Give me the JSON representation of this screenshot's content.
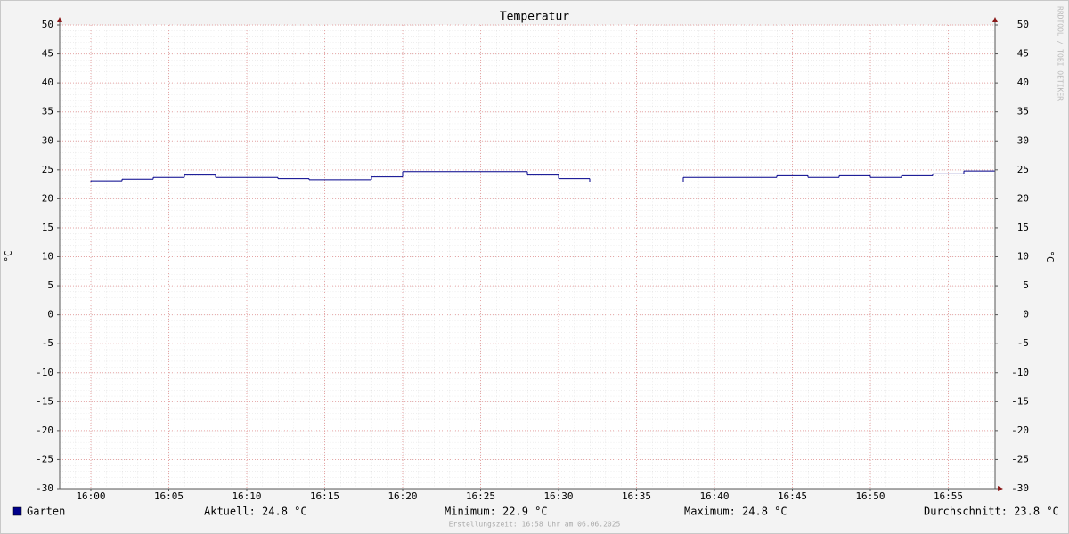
{
  "chart_data": {
    "type": "step",
    "title": "Temperatur",
    "y_label": "°C",
    "y2_label": "°C",
    "watermark": "RRDTOOL / TOBI OETIKER",
    "footer": "Erstellungszeit: 16:58 Uhr am 06.06.2025",
    "x": [
      958,
      960,
      962,
      964,
      966,
      968,
      970,
      972,
      974,
      976,
      978,
      980,
      982,
      984,
      986,
      988,
      990,
      992,
      994,
      996,
      998,
      1000,
      1002,
      1004,
      1006,
      1008,
      1010,
      1012,
      1014,
      1016
    ],
    "series": [
      {
        "name": "Garten",
        "color": "#00008b",
        "values": [
          22.9,
          23.1,
          23.4,
          23.7,
          24.1,
          23.7,
          23.7,
          23.5,
          23.3,
          23.3,
          23.8,
          24.7,
          24.7,
          24.7,
          24.7,
          24.1,
          23.5,
          22.9,
          22.9,
          22.9,
          23.7,
          23.7,
          23.7,
          24.0,
          23.7,
          24.0,
          23.7,
          24.0,
          24.3,
          24.8
        ]
      }
    ],
    "xlim": [
      958,
      1018
    ],
    "xticks": [
      {
        "value": 960,
        "label": "16:00"
      },
      {
        "value": 965,
        "label": "16:05"
      },
      {
        "value": 970,
        "label": "16:10"
      },
      {
        "value": 975,
        "label": "16:15"
      },
      {
        "value": 980,
        "label": "16:20"
      },
      {
        "value": 985,
        "label": "16:25"
      },
      {
        "value": 990,
        "label": "16:30"
      },
      {
        "value": 995,
        "label": "16:35"
      },
      {
        "value": 1000,
        "label": "16:40"
      },
      {
        "value": 1005,
        "label": "16:45"
      },
      {
        "value": 1010,
        "label": "16:50"
      },
      {
        "value": 1015,
        "label": "16:55"
      }
    ],
    "ylim": [
      -30,
      50
    ],
    "yticks": [
      -30,
      -25,
      -20,
      -15,
      -10,
      -5,
      0,
      5,
      10,
      15,
      20,
      25,
      30,
      35,
      40,
      45,
      50
    ],
    "y2lim": [
      -30,
      50
    ],
    "y2ticks": [
      -30,
      -25,
      -20,
      -15,
      -10,
      -5,
      0,
      5,
      10,
      15,
      20,
      25,
      30,
      35,
      40,
      45,
      50
    ],
    "grid": true,
    "stats": [
      "Aktuell: 24.8 °C",
      "Minimum: 22.9 °C",
      "Maximum: 24.8 °C",
      "Durchschnitt: 23.8 °C"
    ]
  }
}
